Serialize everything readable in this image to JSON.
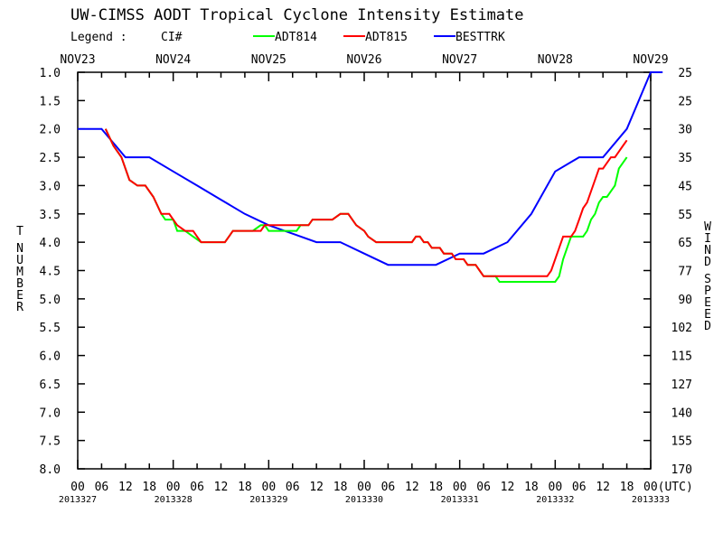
{
  "chart_data": {
    "type": "line",
    "title": "UW-CIMSS AODT Tropical Cyclone Intensity Estimate",
    "legend": {
      "label": "Legend :",
      "ci_label": "CI#",
      "entries": [
        {
          "name": "ADT814",
          "color": "#00ff00"
        },
        {
          "name": "ADT815",
          "color": "#ff0000"
        },
        {
          "name": "BESTTRK",
          "color": "#0000ff"
        }
      ]
    },
    "ylabel_left": "T NUMBER",
    "ylabel_right": "WIND SPEED",
    "ylim": [
      8.0,
      1.0
    ],
    "y_ticks": [
      "1.0",
      "1.5",
      "2.0",
      "2.5",
      "3.0",
      "3.5",
      "4.0",
      "4.5",
      "5.0",
      "5.5",
      "6.0",
      "6.5",
      "7.0",
      "7.5",
      "8.0"
    ],
    "right_ticks": [
      "25",
      "25",
      "30",
      "35",
      "45",
      "55",
      "65",
      "77",
      "90",
      "102",
      "115",
      "127",
      "140",
      "155",
      "170"
    ],
    "xlim_hours": [
      0,
      144
    ],
    "top_day_labels": [
      "NOV23",
      "NOV24",
      "NOV25",
      "NOV26",
      "NOV27",
      "NOV28",
      "NOV29"
    ],
    "x_hour_labels": [
      "00",
      "06",
      "12",
      "18",
      "00",
      "06",
      "12",
      "18",
      "00",
      "06",
      "12",
      "18",
      "00",
      "06",
      "12",
      "18",
      "00",
      "06",
      "12",
      "18",
      "00",
      "06",
      "12",
      "18",
      "00(UTC)"
    ],
    "date_labels": [
      "2013327",
      "2013328",
      "2013329",
      "2013330",
      "2013331",
      "2013332",
      "2013333"
    ],
    "series": [
      {
        "name": "BESTTRK",
        "color": "#0000ff",
        "points": [
          [
            0,
            2.0
          ],
          [
            6,
            2.0
          ],
          [
            12,
            2.5
          ],
          [
            18,
            2.5
          ],
          [
            24,
            2.75
          ],
          [
            30,
            3.0
          ],
          [
            36,
            3.25
          ],
          [
            42,
            3.5
          ],
          [
            48,
            3.7
          ],
          [
            54,
            3.85
          ],
          [
            60,
            4.0
          ],
          [
            66,
            4.0
          ],
          [
            72,
            4.2
          ],
          [
            78,
            4.4
          ],
          [
            84,
            4.4
          ],
          [
            90,
            4.4
          ],
          [
            96,
            4.2
          ],
          [
            102,
            4.2
          ],
          [
            108,
            4.0
          ],
          [
            114,
            3.5
          ],
          [
            120,
            2.75
          ],
          [
            126,
            2.5
          ],
          [
            132,
            2.5
          ],
          [
            138,
            2.0
          ],
          [
            144,
            1.0
          ],
          [
            147,
            1.0
          ]
        ]
      },
      {
        "name": "ADT814",
        "color": "#00ff00",
        "points": [
          [
            7,
            2.0
          ],
          [
            9,
            2.3
          ],
          [
            11,
            2.5
          ],
          [
            13,
            2.9
          ],
          [
            15,
            3.0
          ],
          [
            17,
            3.0
          ],
          [
            19,
            3.2
          ],
          [
            21,
            3.5
          ],
          [
            22,
            3.6
          ],
          [
            24,
            3.6
          ],
          [
            25,
            3.8
          ],
          [
            27,
            3.8
          ],
          [
            29,
            3.9
          ],
          [
            31,
            4.0
          ],
          [
            35,
            4.0
          ],
          [
            37,
            4.0
          ],
          [
            39,
            3.8
          ],
          [
            44,
            3.8
          ],
          [
            46,
            3.7
          ],
          [
            47,
            3.7
          ],
          [
            48,
            3.8
          ],
          [
            55,
            3.8
          ],
          [
            56,
            3.7
          ],
          [
            58,
            3.7
          ],
          [
            59,
            3.6
          ],
          [
            64,
            3.6
          ],
          [
            66,
            3.5
          ],
          [
            68,
            3.5
          ],
          [
            69,
            3.6
          ],
          [
            70,
            3.7
          ],
          [
            72,
            3.8
          ],
          [
            73,
            3.9
          ],
          [
            75,
            4.0
          ],
          [
            80,
            4.0
          ],
          [
            84,
            4.0
          ],
          [
            85,
            3.9
          ],
          [
            86,
            3.9
          ],
          [
            87,
            4.0
          ],
          [
            88,
            4.0
          ],
          [
            89,
            4.1
          ],
          [
            91,
            4.1
          ],
          [
            92,
            4.2
          ],
          [
            94,
            4.2
          ],
          [
            95,
            4.3
          ],
          [
            97,
            4.3
          ],
          [
            98,
            4.4
          ],
          [
            100,
            4.4
          ],
          [
            101,
            4.5
          ],
          [
            102,
            4.6
          ],
          [
            105,
            4.6
          ],
          [
            106,
            4.7
          ],
          [
            120,
            4.7
          ],
          [
            121,
            4.6
          ],
          [
            122,
            4.3
          ],
          [
            123,
            4.1
          ],
          [
            124,
            3.9
          ],
          [
            125,
            3.9
          ],
          [
            127,
            3.9
          ],
          [
            128,
            3.8
          ],
          [
            129,
            3.6
          ],
          [
            130,
            3.5
          ],
          [
            131,
            3.3
          ],
          [
            132,
            3.2
          ],
          [
            133,
            3.2
          ],
          [
            134,
            3.1
          ],
          [
            135,
            3.0
          ],
          [
            136,
            2.7
          ],
          [
            137,
            2.6
          ],
          [
            138,
            2.5
          ]
        ]
      },
      {
        "name": "ADT815",
        "color": "#ff0000",
        "points": [
          [
            7,
            2.0
          ],
          [
            9,
            2.3
          ],
          [
            11,
            2.5
          ],
          [
            13,
            2.9
          ],
          [
            15,
            3.0
          ],
          [
            17,
            3.0
          ],
          [
            19,
            3.2
          ],
          [
            21,
            3.5
          ],
          [
            23,
            3.5
          ],
          [
            24,
            3.6
          ],
          [
            25,
            3.7
          ],
          [
            27,
            3.8
          ],
          [
            29,
            3.8
          ],
          [
            30,
            3.9
          ],
          [
            31,
            4.0
          ],
          [
            35,
            4.0
          ],
          [
            37,
            4.0
          ],
          [
            38,
            3.9
          ],
          [
            39,
            3.8
          ],
          [
            46,
            3.8
          ],
          [
            47,
            3.7
          ],
          [
            56,
            3.7
          ],
          [
            58,
            3.7
          ],
          [
            59,
            3.6
          ],
          [
            64,
            3.6
          ],
          [
            66,
            3.5
          ],
          [
            68,
            3.5
          ],
          [
            69,
            3.6
          ],
          [
            70,
            3.7
          ],
          [
            72,
            3.8
          ],
          [
            73,
            3.9
          ],
          [
            75,
            4.0
          ],
          [
            80,
            4.0
          ],
          [
            84,
            4.0
          ],
          [
            85,
            3.9
          ],
          [
            86,
            3.9
          ],
          [
            87,
            4.0
          ],
          [
            88,
            4.0
          ],
          [
            89,
            4.1
          ],
          [
            91,
            4.1
          ],
          [
            92,
            4.2
          ],
          [
            94,
            4.2
          ],
          [
            95,
            4.3
          ],
          [
            97,
            4.3
          ],
          [
            98,
            4.4
          ],
          [
            100,
            4.4
          ],
          [
            101,
            4.5
          ],
          [
            102,
            4.6
          ],
          [
            106,
            4.6
          ],
          [
            118,
            4.6
          ],
          [
            119,
            4.5
          ],
          [
            120,
            4.3
          ],
          [
            121,
            4.1
          ],
          [
            122,
            3.9
          ],
          [
            124,
            3.9
          ],
          [
            125,
            3.8
          ],
          [
            126,
            3.6
          ],
          [
            127,
            3.4
          ],
          [
            128,
            3.3
          ],
          [
            129,
            3.1
          ],
          [
            130,
            2.9
          ],
          [
            131,
            2.7
          ],
          [
            132,
            2.7
          ],
          [
            133,
            2.6
          ],
          [
            134,
            2.5
          ],
          [
            135,
            2.5
          ],
          [
            136,
            2.4
          ],
          [
            137,
            2.3
          ],
          [
            138,
            2.2
          ]
        ]
      }
    ]
  }
}
